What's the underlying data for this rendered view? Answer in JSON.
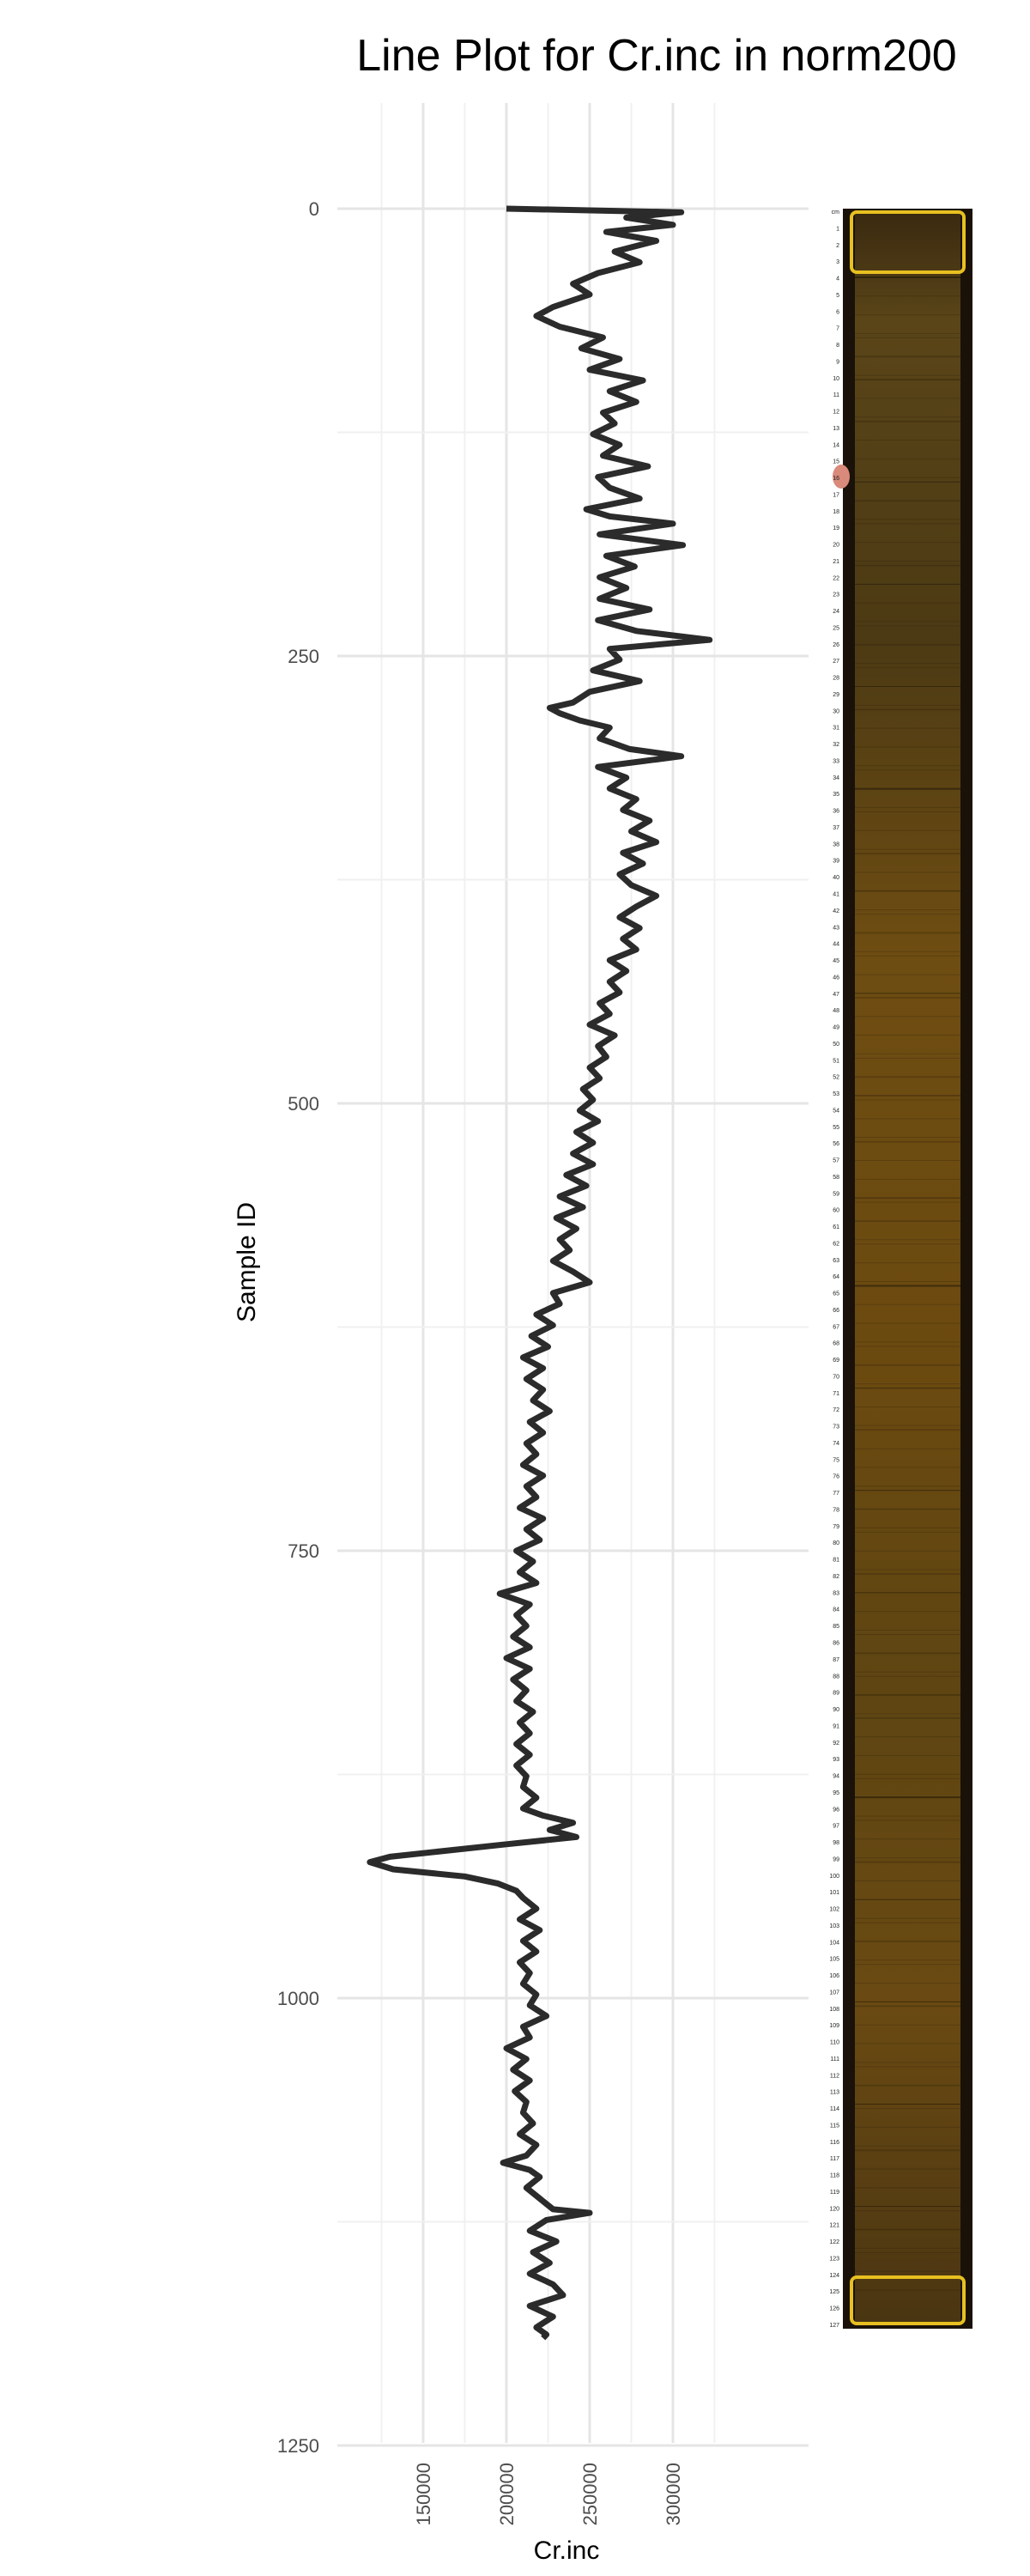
{
  "chart_data": {
    "type": "line",
    "title": "Line Plot for Cr.inc in norm200",
    "xlabel": "Cr.inc",
    "ylabel": "Sample ID",
    "xlim": [
      100000,
      342000
    ],
    "ylim": [
      1250,
      -120
    ],
    "y_reversed": true,
    "x_ticks": [
      150000,
      200000,
      250000,
      300000
    ],
    "y_ticks": [
      0,
      250,
      500,
      750,
      1000,
      1250
    ],
    "grid": true,
    "series": [
      {
        "points": [
          [
            0,
            200000
          ],
          [
            2,
            305000
          ],
          [
            5,
            272000
          ],
          [
            9,
            300000
          ],
          [
            13,
            260000
          ],
          [
            18,
            290000
          ],
          [
            24,
            265000
          ],
          [
            30,
            280000
          ],
          [
            36,
            255000
          ],
          [
            42,
            240000
          ],
          [
            48,
            250000
          ],
          [
            55,
            228000
          ],
          [
            60,
            218000
          ],
          [
            66,
            232000
          ],
          [
            72,
            258000
          ],
          [
            78,
            245000
          ],
          [
            84,
            268000
          ],
          [
            90,
            250000
          ],
          [
            96,
            282000
          ],
          [
            102,
            262000
          ],
          [
            108,
            278000
          ],
          [
            114,
            258000
          ],
          [
            120,
            265000
          ],
          [
            126,
            252000
          ],
          [
            132,
            268000
          ],
          [
            138,
            258000
          ],
          [
            144,
            285000
          ],
          [
            150,
            255000
          ],
          [
            156,
            262000
          ],
          [
            162,
            280000
          ],
          [
            168,
            248000
          ],
          [
            172,
            262000
          ],
          [
            176,
            300000
          ],
          [
            182,
            256000
          ],
          [
            188,
            306000
          ],
          [
            194,
            260000
          ],
          [
            200,
            277000
          ],
          [
            206,
            256000
          ],
          [
            212,
            272000
          ],
          [
            218,
            256000
          ],
          [
            224,
            286000
          ],
          [
            230,
            255000
          ],
          [
            236,
            278000
          ],
          [
            241,
            322000
          ],
          [
            246,
            262000
          ],
          [
            252,
            268000
          ],
          [
            258,
            252000
          ],
          [
            264,
            280000
          ],
          [
            270,
            250000
          ],
          [
            276,
            240000
          ],
          [
            279,
            226000
          ],
          [
            282,
            232000
          ],
          [
            286,
            244000
          ],
          [
            290,
            262000
          ],
          [
            296,
            256000
          ],
          [
            302,
            274000
          ],
          [
            306,
            305000
          ],
          [
            312,
            255000
          ],
          [
            318,
            272000
          ],
          [
            324,
            262000
          ],
          [
            330,
            278000
          ],
          [
            336,
            270000
          ],
          [
            342,
            286000
          ],
          [
            348,
            275000
          ],
          [
            354,
            290000
          ],
          [
            360,
            270000
          ],
          [
            366,
            282000
          ],
          [
            372,
            268000
          ],
          [
            378,
            275000
          ],
          [
            384,
            290000
          ],
          [
            390,
            278000
          ],
          [
            396,
            268000
          ],
          [
            402,
            280000
          ],
          [
            408,
            270000
          ],
          [
            414,
            278000
          ],
          [
            420,
            262000
          ],
          [
            426,
            272000
          ],
          [
            432,
            262000
          ],
          [
            438,
            268000
          ],
          [
            444,
            256000
          ],
          [
            450,
            262000
          ],
          [
            456,
            250000
          ],
          [
            462,
            265000
          ],
          [
            468,
            255000
          ],
          [
            474,
            260000
          ],
          [
            480,
            250000
          ],
          [
            486,
            256000
          ],
          [
            492,
            246000
          ],
          [
            498,
            252000
          ],
          [
            504,
            244000
          ],
          [
            510,
            255000
          ],
          [
            516,
            242000
          ],
          [
            522,
            252000
          ],
          [
            528,
            240000
          ],
          [
            534,
            252000
          ],
          [
            540,
            236000
          ],
          [
            546,
            248000
          ],
          [
            552,
            232000
          ],
          [
            558,
            246000
          ],
          [
            564,
            230000
          ],
          [
            570,
            242000
          ],
          [
            576,
            232000
          ],
          [
            582,
            238000
          ],
          [
            588,
            228000
          ],
          [
            594,
            240000
          ],
          [
            600,
            250000
          ],
          [
            606,
            228000
          ],
          [
            612,
            232000
          ],
          [
            618,
            218000
          ],
          [
            624,
            228000
          ],
          [
            630,
            215000
          ],
          [
            636,
            225000
          ],
          [
            642,
            210000
          ],
          [
            648,
            222000
          ],
          [
            654,
            212000
          ],
          [
            660,
            222000
          ],
          [
            666,
            216000
          ],
          [
            672,
            226000
          ],
          [
            678,
            214000
          ],
          [
            684,
            222000
          ],
          [
            690,
            212000
          ],
          [
            696,
            218000
          ],
          [
            702,
            210000
          ],
          [
            708,
            222000
          ],
          [
            714,
            212000
          ],
          [
            720,
            218000
          ],
          [
            726,
            208000
          ],
          [
            732,
            222000
          ],
          [
            738,
            212000
          ],
          [
            744,
            220000
          ],
          [
            750,
            206000
          ],
          [
            756,
            216000
          ],
          [
            762,
            208000
          ],
          [
            768,
            218000
          ],
          [
            774,
            196000
          ],
          [
            780,
            214000
          ],
          [
            786,
            206000
          ],
          [
            792,
            212000
          ],
          [
            798,
            204000
          ],
          [
            804,
            214000
          ],
          [
            810,
            200000
          ],
          [
            816,
            214000
          ],
          [
            822,
            204000
          ],
          [
            828,
            212000
          ],
          [
            834,
            206000
          ],
          [
            840,
            216000
          ],
          [
            846,
            208000
          ],
          [
            852,
            214000
          ],
          [
            858,
            206000
          ],
          [
            864,
            214000
          ],
          [
            870,
            206000
          ],
          [
            876,
            212000
          ],
          [
            882,
            210000
          ],
          [
            888,
            218000
          ],
          [
            894,
            210000
          ],
          [
            898,
            222000
          ],
          [
            902,
            240000
          ],
          [
            906,
            226000
          ],
          [
            910,
            242000
          ],
          [
            914,
            200000
          ],
          [
            918,
            160000
          ],
          [
            921,
            130000
          ],
          [
            924,
            118000
          ],
          [
            928,
            132000
          ],
          [
            932,
            175000
          ],
          [
            936,
            195000
          ],
          [
            940,
            206000
          ],
          [
            944,
            210000
          ],
          [
            950,
            218000
          ],
          [
            956,
            208000
          ],
          [
            962,
            220000
          ],
          [
            968,
            210000
          ],
          [
            974,
            218000
          ],
          [
            980,
            208000
          ],
          [
            986,
            214000
          ],
          [
            992,
            210000
          ],
          [
            998,
            218000
          ],
          [
            1004,
            214000
          ],
          [
            1010,
            224000
          ],
          [
            1016,
            210000
          ],
          [
            1022,
            214000
          ],
          [
            1028,
            200000
          ],
          [
            1034,
            212000
          ],
          [
            1040,
            204000
          ],
          [
            1046,
            214000
          ],
          [
            1052,
            205000
          ],
          [
            1058,
            212000
          ],
          [
            1064,
            210000
          ],
          [
            1070,
            216000
          ],
          [
            1076,
            208000
          ],
          [
            1082,
            218000
          ],
          [
            1088,
            212000
          ],
          [
            1092,
            198000
          ],
          [
            1096,
            214000
          ],
          [
            1100,
            220000
          ],
          [
            1106,
            212000
          ],
          [
            1112,
            220000
          ],
          [
            1118,
            228000
          ],
          [
            1120,
            250000
          ],
          [
            1124,
            224000
          ],
          [
            1130,
            214000
          ],
          [
            1136,
            230000
          ],
          [
            1142,
            216000
          ],
          [
            1148,
            226000
          ],
          [
            1154,
            214000
          ],
          [
            1160,
            228000
          ],
          [
            1166,
            234000
          ],
          [
            1172,
            214000
          ],
          [
            1178,
            228000
          ],
          [
            1184,
            218000
          ],
          [
            1188,
            224000
          ],
          [
            1190,
            222000
          ]
        ]
      }
    ],
    "line_color": "#2b2b2b"
  },
  "core_image": {
    "cm_labels": [
      "cm",
      "1",
      "2",
      "3",
      "4",
      "5",
      "6",
      "7",
      "8",
      "9",
      "10",
      "11",
      "12",
      "13",
      "14",
      "15",
      "16",
      "17",
      "18",
      "19",
      "20",
      "21",
      "22",
      "23",
      "24",
      "25",
      "26",
      "27",
      "28",
      "29",
      "30",
      "31",
      "32",
      "33",
      "34",
      "35",
      "36",
      "37",
      "38",
      "39",
      "40",
      "41",
      "42",
      "43",
      "44",
      "45",
      "46",
      "47",
      "48",
      "49",
      "50",
      "51",
      "52",
      "53",
      "54",
      "55",
      "56",
      "57",
      "58",
      "59",
      "60",
      "61",
      "62",
      "63",
      "64",
      "65",
      "66",
      "67",
      "68",
      "69",
      "70",
      "71",
      "72",
      "73",
      "74",
      "75",
      "76",
      "77",
      "78",
      "79",
      "80",
      "81",
      "82",
      "83",
      "84",
      "85",
      "86",
      "87",
      "88",
      "89",
      "90",
      "91",
      "92",
      "93",
      "94",
      "95",
      "96",
      "97",
      "98",
      "99",
      "100",
      "101",
      "102",
      "103",
      "104",
      "105",
      "106",
      "107",
      "108",
      "109",
      "110",
      "111",
      "112",
      "113",
      "114",
      "115",
      "116",
      "117",
      "118",
      "119",
      "120",
      "121",
      "122",
      "123",
      "124",
      "125",
      "126",
      "127"
    ],
    "colors": {
      "sediment": "#6b4a12",
      "frame": "#1a1208",
      "edge": "#e8c020"
    }
  }
}
